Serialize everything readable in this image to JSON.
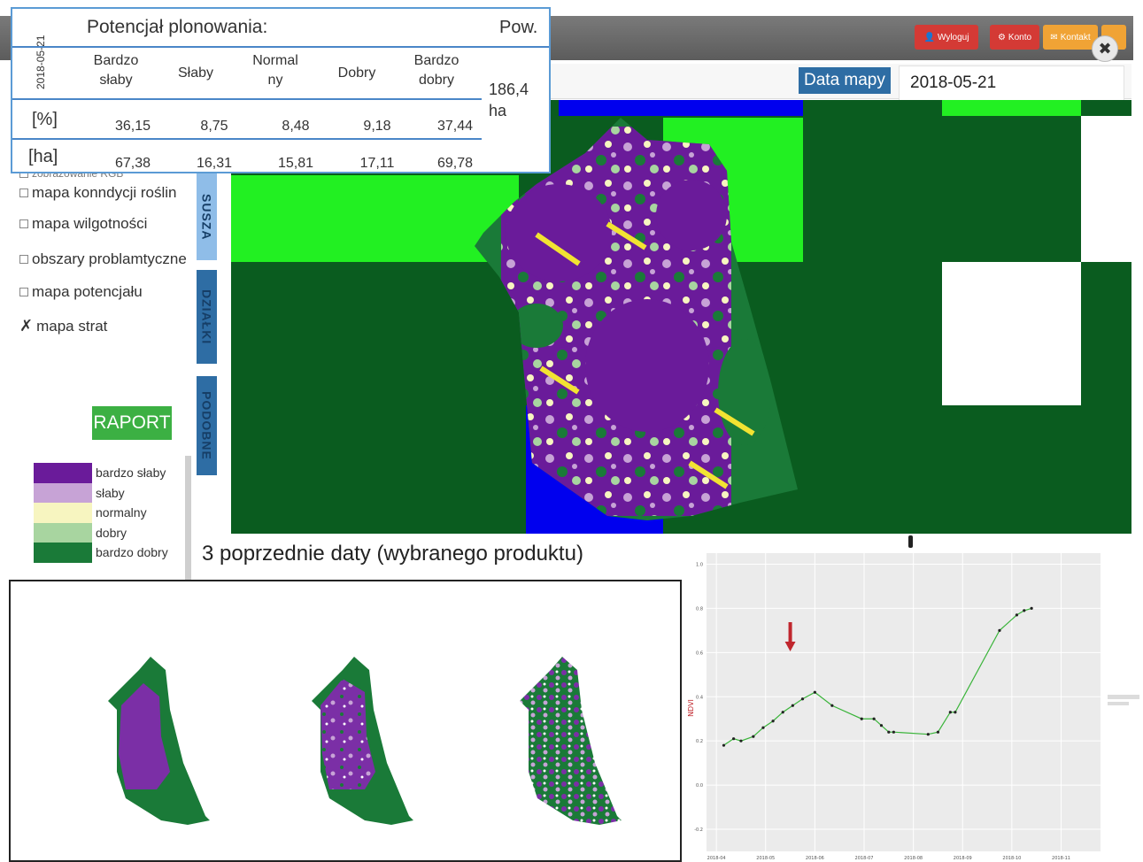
{
  "topbar": {
    "logout_label": "Wyloguj",
    "account_label": "Konto",
    "contact_label": "Kontakt"
  },
  "datebar": {
    "map_date_label": "Data mapy",
    "map_date_value": "2018-05-21"
  },
  "stats": {
    "date": "2018-05-21",
    "title": "Potencjał plonowania:",
    "area_label": "Pow.",
    "area_value": "186,4",
    "area_unit": "ha",
    "columns": [
      "Bardzo\nsłaby",
      "Słaby",
      "Normal\nny",
      "Dobry",
      "Bardzo\ndobry"
    ],
    "row_percent_label": "[%]",
    "row_percent": [
      "36,15",
      "8,75",
      "8,48",
      "9,18",
      "37,44"
    ],
    "row_ha_label": "[ha]",
    "row_ha": [
      "67,38",
      "16,31",
      "15,81",
      "17,11",
      "69,78"
    ]
  },
  "layers": {
    "partial_label": "zobrazowanie RGB",
    "items": [
      {
        "label": "mapa konndycji roślin",
        "checked": false
      },
      {
        "label": "mapa wilgotności",
        "checked": false
      },
      {
        "label": "obszary problamtyczne",
        "checked": false
      },
      {
        "label": "mapa potencjału",
        "checked": false
      },
      {
        "label": "mapa strat",
        "checked": true
      }
    ]
  },
  "tabs": [
    "SUSZA",
    "DZIAŁKI",
    "PODOBNE"
  ],
  "raport_label": "RAPORT",
  "legend": [
    {
      "label": "bardzo słaby",
      "color": "#6a1b9a"
    },
    {
      "label": "słaby",
      "color": "#c7a3d6"
    },
    {
      "label": "normalny",
      "color": "#f7f5c0"
    },
    {
      "label": "dobry",
      "color": "#a8d5a0"
    },
    {
      "label": "bardzo dobry",
      "color": "#1a7a38"
    }
  ],
  "colors": {
    "field_background": "#0a5c1f",
    "bright_green": "#22f022",
    "blue_block": "#0000ee",
    "yellow_line": "#f2e332",
    "accent_blue": "#2e6da4"
  },
  "prev_title": "3 poprzednie daty (wybranego produktu)",
  "chart_data": {
    "type": "line",
    "ylabel": "NDVI",
    "y_ticks": [
      "1.0",
      "0.8",
      "0.6",
      "0.4",
      "0.2",
      "0.0",
      "-0.2"
    ],
    "ylim": [
      -0.3,
      1.05
    ],
    "x_ticks": [
      "2018-04",
      "2018-05",
      "2018-06",
      "2018-07",
      "2018-08",
      "2018-09",
      "2018-10",
      "2018-11"
    ],
    "x": [
      0.15,
      0.35,
      0.5,
      0.75,
      0.95,
      1.15,
      1.35,
      1.55,
      1.75,
      2.0,
      2.35,
      2.95,
      3.2,
      3.35,
      3.5,
      3.6,
      4.3,
      4.5,
      4.75,
      4.85,
      5.75,
      6.1,
      6.25,
      6.4
    ],
    "values": [
      0.18,
      0.21,
      0.2,
      0.22,
      0.26,
      0.29,
      0.33,
      0.36,
      0.39,
      0.42,
      0.36,
      0.3,
      0.3,
      0.27,
      0.24,
      0.24,
      0.23,
      0.24,
      0.33,
      0.33,
      0.7,
      0.77,
      0.79,
      0.8
    ],
    "marker_x": 1.5,
    "grid": true,
    "legend_position": "right"
  }
}
